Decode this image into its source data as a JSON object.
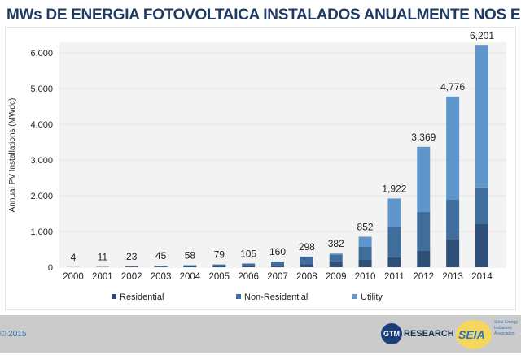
{
  "title": "MWs DE ENERGIA FOTOVOLTAICA INSTALADOS ANUALMENTE NOS EUA",
  "footer": {
    "copyright": "© 2015",
    "logo_gtm": "GTM",
    "logo_gtm_text": "RESEARCH",
    "logo_seia": "SEIA",
    "logo_seia_sub": "Solar Energy Industries Association",
    "logo_seia_badge": "40 YEARS"
  },
  "colors": {
    "Residential": "#2d4f78",
    "Non-Residential": "#3f6e9d",
    "Utility": "#5f96cb",
    "plot_bg": "#f3f3f3"
  },
  "chart_data": {
    "type": "bar",
    "stacked": true,
    "title": "MWs DE ENERGIA FOTOVOLTAICA INSTALADOS ANUALMENTE NOS EUA",
    "xlabel": "",
    "ylabel": "Annual PV Installations (MWdc)",
    "ylim": [
      0,
      6500
    ],
    "yticks": [
      0,
      1000,
      2000,
      3000,
      4000,
      5000,
      6000
    ],
    "ytick_labels": [
      "0",
      "1,000",
      "2,000",
      "3,000",
      "4,000",
      "5,000",
      "6,000"
    ],
    "grid": true,
    "legend": "bottom",
    "categories": [
      "2000",
      "2001",
      "2002",
      "2003",
      "2004",
      "2005",
      "2006",
      "2007",
      "2008",
      "2009",
      "2010",
      "2011",
      "2012",
      "2013",
      "2014"
    ],
    "series": [
      {
        "name": "Residential",
        "values": [
          2,
          5,
          10,
          15,
          25,
          30,
          40,
          60,
          80,
          160,
          220,
          280,
          470,
          790,
          1205
        ]
      },
      {
        "name": "Non-Residential",
        "values": [
          2,
          6,
          12,
          28,
          30,
          45,
          60,
          90,
          200,
          190,
          348,
          834,
          1075,
          1096,
          1029
        ]
      },
      {
        "name": "Utility",
        "values": [
          0,
          0,
          1,
          2,
          3,
          4,
          5,
          10,
          18,
          32,
          284,
          808,
          1824,
          2890,
          3967
        ]
      }
    ],
    "totals": [
      4,
      11,
      23,
      45,
      58,
      79,
      105,
      160,
      298,
      382,
      852,
      1922,
      3369,
      4776,
      6201
    ],
    "total_labels": [
      "4",
      "11",
      "23",
      "45",
      "58",
      "79",
      "105",
      "160",
      "298",
      "382",
      "852",
      "1,922",
      "3,369",
      "4,776",
      "6,201"
    ]
  }
}
